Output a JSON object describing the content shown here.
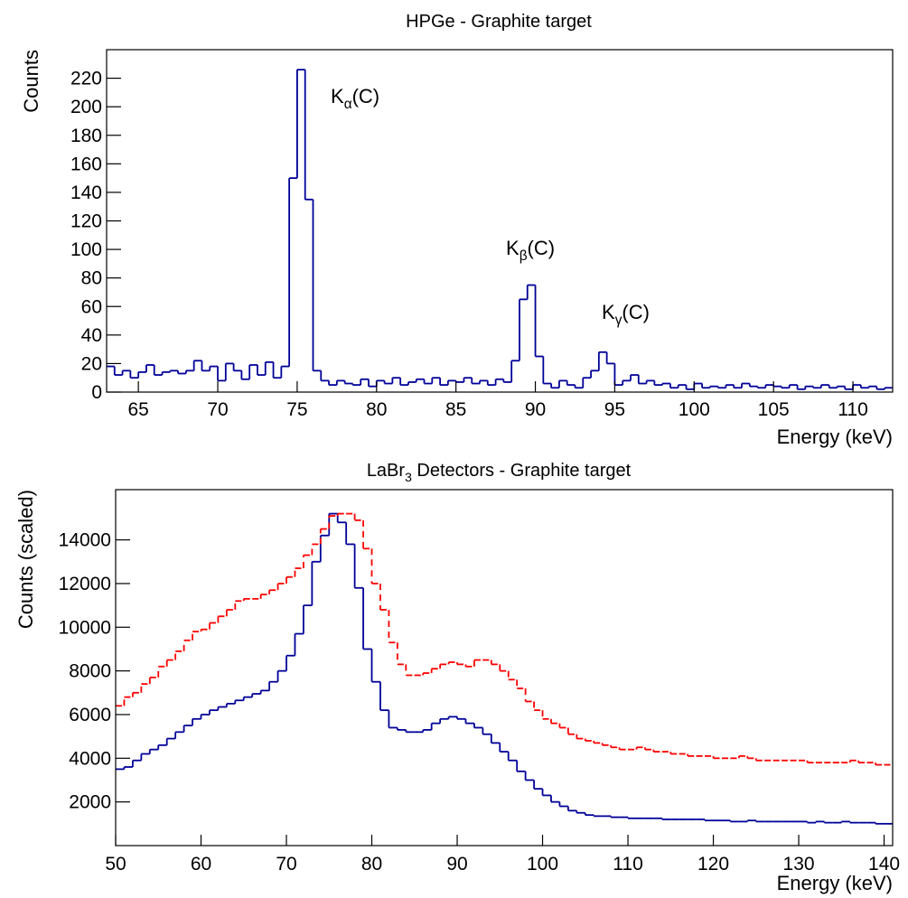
{
  "chart_data": [
    {
      "type": "histogram",
      "title": "HPGe - Graphite target",
      "xlabel": "Energy (keV)",
      "ylabel": "Counts",
      "bins": [
        63,
        63.5,
        64,
        64.5,
        65,
        65.5,
        66,
        66.5,
        67,
        67.5,
        68,
        68.5,
        69,
        69.5,
        70,
        70.5,
        71,
        71.5,
        72,
        72.5,
        73,
        73.5,
        74,
        74.5,
        75,
        75.5,
        76,
        76.5,
        77,
        77.5,
        78,
        78.5,
        79,
        79.5,
        80,
        80.5,
        81,
        81.5,
        82,
        82.5,
        83,
        83.5,
        84,
        84.5,
        85,
        85.5,
        86,
        86.5,
        87,
        87.5,
        88,
        88.5,
        89,
        89.5,
        90,
        90.5,
        91,
        91.5,
        92,
        92.5,
        93,
        93.5,
        94,
        94.5,
        95,
        95.5,
        96,
        96.5,
        97,
        97.5,
        98,
        98.5,
        99,
        99.5,
        100,
        100.5,
        101,
        101.5,
        102,
        102.5,
        103,
        103.5,
        104,
        104.5,
        105,
        105.5,
        106,
        106.5,
        107,
        107.5,
        108,
        108.5,
        109,
        109.5,
        110,
        110.5,
        111,
        111.5,
        112,
        112.5
      ],
      "values": [
        18,
        12,
        15,
        10,
        14,
        19,
        12,
        14,
        15,
        13,
        15,
        22,
        15,
        18,
        8,
        20,
        15,
        9,
        19,
        12,
        21,
        10,
        18,
        150,
        226,
        135,
        15,
        8,
        5,
        8,
        6,
        5,
        9,
        4,
        8,
        6,
        10,
        5,
        7,
        9,
        6,
        10,
        5,
        8,
        7,
        10,
        6,
        8,
        5,
        9,
        7,
        22,
        65,
        75,
        25,
        6,
        3,
        8,
        5,
        3,
        10,
        15,
        28,
        20,
        5,
        8,
        12,
        6,
        8,
        5,
        6,
        3,
        5,
        2,
        6,
        3,
        4,
        3,
        5,
        3,
        6,
        4,
        3,
        5,
        4,
        3,
        5,
        2,
        4,
        3,
        5,
        3,
        4,
        2,
        5,
        3,
        4,
        2,
        3
      ],
      "color": "#000099",
      "xlim": [
        63,
        112.5
      ],
      "ylim": [
        0,
        240
      ],
      "xticks": [
        65,
        70,
        75,
        80,
        85,
        90,
        95,
        100,
        105,
        110
      ],
      "yticks": [
        0,
        20,
        40,
        60,
        80,
        100,
        120,
        140,
        160,
        180,
        200,
        220
      ],
      "annotations": [
        {
          "base": "K",
          "sub": "α",
          "tail": "(C)"
        },
        {
          "base": "K",
          "sub": "β",
          "tail": "(C)"
        },
        {
          "base": "K",
          "sub": "γ",
          "tail": "(C)"
        }
      ]
    },
    {
      "type": "histogram",
      "title": {
        "base": "LaBr",
        "sub": "3",
        "tail": " Detectors - Graphite target"
      },
      "xlabel": "Energy (keV)",
      "ylabel": "Counts (scaled)",
      "bins": [
        50,
        51,
        52,
        53,
        54,
        55,
        56,
        57,
        58,
        59,
        60,
        61,
        62,
        63,
        64,
        65,
        66,
        67,
        68,
        69,
        70,
        71,
        72,
        73,
        74,
        75,
        76,
        77,
        78,
        79,
        80,
        81,
        82,
        83,
        84,
        85,
        86,
        87,
        88,
        89,
        90,
        91,
        92,
        93,
        94,
        95,
        96,
        97,
        98,
        99,
        100,
        101,
        102,
        103,
        104,
        105,
        106,
        107,
        108,
        109,
        110,
        111,
        112,
        113,
        114,
        115,
        116,
        117,
        118,
        119,
        120,
        121,
        122,
        123,
        124,
        125,
        126,
        127,
        128,
        129,
        130,
        131,
        132,
        133,
        134,
        135,
        136,
        137,
        138,
        139,
        140,
        141
      ],
      "series": [
        {
          "color": "#000099",
          "line_style": "solid",
          "values": [
            3500,
            3600,
            3900,
            4200,
            4400,
            4600,
            4900,
            5200,
            5500,
            5800,
            6000,
            6200,
            6350,
            6500,
            6650,
            6800,
            6950,
            7100,
            7500,
            8000,
            8700,
            9700,
            11000,
            13000,
            14200,
            15200,
            14800,
            13800,
            11800,
            9000,
            7500,
            6200,
            5400,
            5300,
            5200,
            5200,
            5300,
            5600,
            5800,
            5900,
            5800,
            5600,
            5400,
            5100,
            4700,
            4300,
            3900,
            3400,
            3000,
            2600,
            2300,
            2000,
            1800,
            1600,
            1500,
            1400,
            1350,
            1350,
            1300,
            1300,
            1250,
            1250,
            1250,
            1250,
            1200,
            1200,
            1200,
            1200,
            1200,
            1150,
            1150,
            1150,
            1100,
            1100,
            1150,
            1100,
            1100,
            1100,
            1100,
            1100,
            1100,
            1050,
            1100,
            1050,
            1050,
            1100,
            1050,
            1050,
            1050,
            1000,
            1000
          ]
        },
        {
          "color": "#ff0000",
          "line_style": "dashed",
          "values": [
            6400,
            6800,
            7000,
            7400,
            7700,
            8200,
            8500,
            8900,
            9400,
            9800,
            9900,
            10200,
            10500,
            10800,
            11200,
            11300,
            11300,
            11500,
            11700,
            12000,
            12300,
            12700,
            13300,
            13800,
            14500,
            15100,
            15200,
            15200,
            14900,
            13600,
            12000,
            10800,
            9300,
            8300,
            7800,
            7800,
            7900,
            8100,
            8300,
            8400,
            8300,
            8200,
            8500,
            8500,
            8300,
            8000,
            7600,
            7200,
            6600,
            6200,
            5800,
            5600,
            5400,
            5100,
            4900,
            4800,
            4700,
            4600,
            4500,
            4400,
            4400,
            4500,
            4400,
            4300,
            4300,
            4200,
            4200,
            4100,
            4100,
            4100,
            4000,
            4000,
            4000,
            4100,
            4000,
            3900,
            3900,
            3900,
            3900,
            3900,
            3900,
            3800,
            3800,
            3800,
            3800,
            3800,
            3900,
            3800,
            3800,
            3700,
            3700
          ]
        }
      ],
      "xlim": [
        50,
        141
      ],
      "ylim": [
        0,
        16300
      ],
      "xticks": [
        50,
        60,
        70,
        80,
        90,
        100,
        110,
        120,
        130,
        140
      ],
      "yticks": [
        2000,
        4000,
        6000,
        8000,
        10000,
        12000,
        14000
      ]
    }
  ]
}
